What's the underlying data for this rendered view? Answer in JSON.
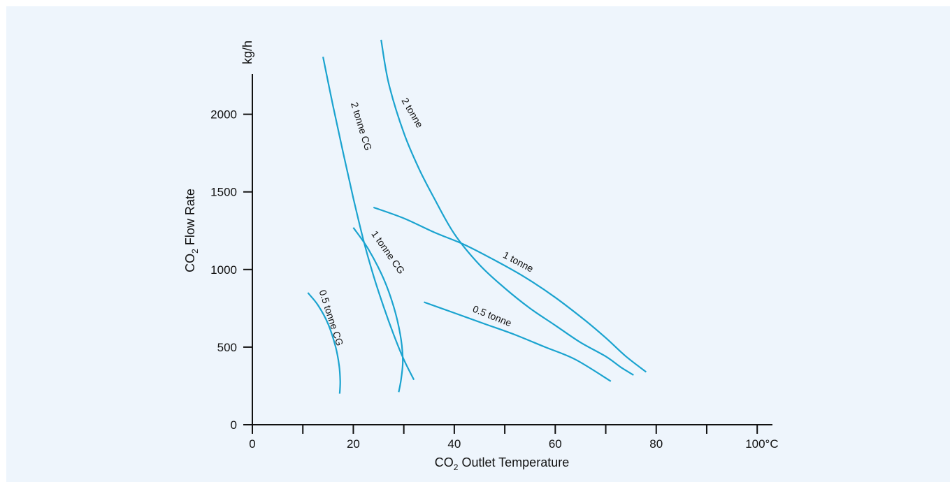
{
  "chart_data": {
    "type": "line",
    "xlabel_main": "CO",
    "xlabel_sub": "2",
    "xlabel_rest": " Outlet Temperature",
    "ylabel_main": "CO",
    "ylabel_sub": "2",
    "ylabel_rest": " Flow Rate",
    "yunit": "kg/h",
    "xlim": [
      0,
      103
    ],
    "ylim": [
      0,
      2250
    ],
    "x_ticks": [
      0,
      10,
      20,
      30,
      40,
      50,
      60,
      70,
      80,
      90,
      100
    ],
    "x_tick_labels": [
      "0",
      "",
      "20",
      "",
      "40",
      "",
      "60",
      "",
      "80",
      "",
      "100°C"
    ],
    "y_ticks": [
      0,
      500,
      1000,
      1500,
      2000
    ],
    "y_tick_labels": [
      "0",
      "500",
      "1000",
      "1500",
      "2000"
    ],
    "colors": {
      "curve": "#1aa3cf",
      "axis": "#111111",
      "background": "#eef5fc"
    },
    "series": [
      {
        "name": "2 tonne CG",
        "x": [
          14,
          16,
          18,
          20,
          22,
          24,
          26,
          28,
          30,
          32
        ],
        "y": [
          2370,
          2050,
          1750,
          1460,
          1190,
          960,
          760,
          580,
          420,
          290
        ]
      },
      {
        "name": "2 tonne",
        "x": [
          25.5,
          27,
          30,
          33,
          36,
          40,
          45,
          50,
          55,
          60,
          65,
          70,
          73,
          75.5
        ],
        "y": [
          2480,
          2200,
          1880,
          1650,
          1460,
          1230,
          1030,
          880,
          750,
          640,
          530,
          440,
          370,
          320
        ]
      },
      {
        "name": "1 tonne",
        "x": [
          24,
          30,
          36,
          42,
          48,
          54,
          60,
          66,
          70,
          74,
          78
        ],
        "y": [
          1400,
          1330,
          1240,
          1160,
          1060,
          950,
          820,
          670,
          560,
          440,
          340
        ]
      },
      {
        "name": "1 tonne CG",
        "x": [
          20,
          23,
          26,
          28,
          29.3,
          29.8,
          29.5,
          29
        ],
        "y": [
          1270,
          1130,
          940,
          760,
          580,
          420,
          300,
          210
        ]
      },
      {
        "name": "0.5 tonne",
        "x": [
          34,
          40,
          46,
          52,
          58,
          64,
          71
        ],
        "y": [
          790,
          720,
          650,
          580,
          500,
          420,
          280
        ]
      },
      {
        "name": "0.5 tonne CG",
        "x": [
          11,
          13,
          15,
          16.5,
          17.2,
          17.4,
          17.3
        ],
        "y": [
          850,
          770,
          650,
          500,
          380,
          280,
          200
        ]
      }
    ],
    "labels": [
      {
        "text": "2 tonne CG",
        "x": 19.5,
        "y": 2070,
        "angle": 73
      },
      {
        "text": "2 tonne",
        "x": 29.5,
        "y": 2090,
        "angle": 60
      },
      {
        "text": "1 tonne",
        "x": 49.5,
        "y": 1080,
        "angle": 28
      },
      {
        "text": "1 tonne CG",
        "x": 23.5,
        "y": 1230,
        "angle": 55
      },
      {
        "text": "0.5 tonne",
        "x": 43.5,
        "y": 730,
        "angle": 22
      },
      {
        "text": "0.5 tonne CG",
        "x": 13.2,
        "y": 860,
        "angle": 72
      }
    ]
  }
}
